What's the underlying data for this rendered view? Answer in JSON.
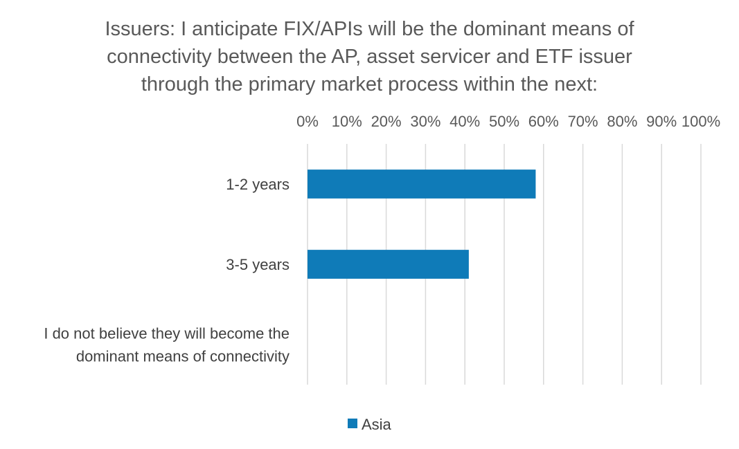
{
  "chart_data": {
    "type": "bar",
    "orientation": "horizontal",
    "title_lines": [
      "Issuers: I anticipate FIX/APIs will be the dominant means of",
      "connectivity between the AP, asset servicer and ETF issuer",
      "through the primary market process within the next:"
    ],
    "categories": [
      [
        "1-2 years"
      ],
      [
        "3-5 years"
      ],
      [
        "I do not believe they will become the",
        "dominant means of connectivity"
      ]
    ],
    "series": [
      {
        "name": "Asia",
        "values": [
          58,
          41,
          0
        ]
      }
    ],
    "xlim": [
      0,
      100
    ],
    "xticks": [
      "0%",
      "10%",
      "20%",
      "30%",
      "40%",
      "50%",
      "60%",
      "70%",
      "80%",
      "90%",
      "100%"
    ],
    "x_axis_position": "top",
    "grid": true,
    "legend": "bottom",
    "colors": {
      "series": "#0F7BB8",
      "grid": "#D9D9D9",
      "text": "#595959"
    }
  }
}
